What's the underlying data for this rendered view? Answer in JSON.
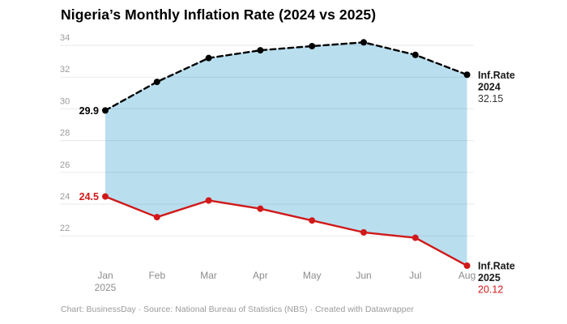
{
  "title": "Nigeria’s Monthly Inflation Rate (2024 vs 2025)",
  "footer": "Chart: BusinessDay · Source: National Bureau of Statistics (NBS) · Created with Datawrapper",
  "chart_data": {
    "type": "line",
    "title": "Nigeria’s Monthly Inflation Rate (2024 vs 2025)",
    "categories": [
      "Jan",
      "Feb",
      "Mar",
      "Apr",
      "May",
      "Jun",
      "Jul",
      "Aug"
    ],
    "year_label": "2025",
    "year_label_index": 0,
    "yticks": [
      22,
      24,
      26,
      28,
      30,
      32,
      34
    ],
    "ylim": [
      20,
      34.6
    ],
    "grid": true,
    "legend_position": "line-end-labels",
    "area_between_series": true,
    "area_fill": "#b9dfef",
    "grid_color": "rgba(17,17,17,0.09)",
    "axis_text_color": "#9b9b9b",
    "xaxis_text_color": "#8c8c8c",
    "series": [
      {
        "name": "Inf.Rate 2024",
        "line_style": "dashed",
        "color": "#000000",
        "values": [
          29.9,
          31.7,
          33.2,
          33.69,
          33.95,
          34.19,
          33.4,
          32.15
        ],
        "first_point_label": "29.9",
        "first_point_label_color": "#000000",
        "end_label_lines": [
          "Inf.Rate",
          "2024"
        ],
        "end_value_label": "32.15",
        "end_value_color": "#333333"
      },
      {
        "name": "Inf.Rate 2025",
        "line_style": "solid",
        "color": "#d11919",
        "values": [
          24.48,
          23.18,
          24.23,
          23.71,
          22.97,
          22.22,
          21.88,
          20.12
        ],
        "first_point_label": "24.5",
        "first_point_label_color": "#d11919",
        "end_label_lines": [
          "Inf.Rate",
          "2025"
        ],
        "end_value_label": "20.12",
        "end_value_color": "#d11919"
      }
    ]
  }
}
